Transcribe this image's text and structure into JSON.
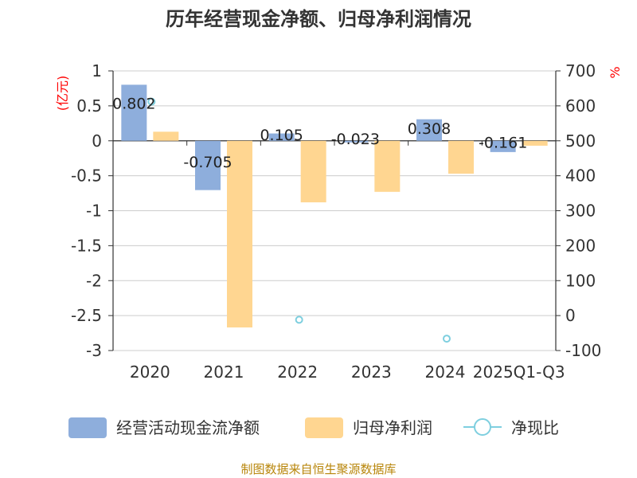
{
  "chart_data": {
    "type": "bar",
    "title": "历年经营现金净额、归母净利润情况",
    "categories": [
      "2020",
      "2021",
      "2022",
      "2023",
      "2024",
      "2025Q1-Q3"
    ],
    "left_axis": {
      "unit": "(亿元)",
      "ylim": [
        -3,
        1
      ],
      "ticks": [
        "1",
        "0.5",
        "0",
        "-0.5",
        "-1",
        "-1.5",
        "-2",
        "-2.5",
        "-3"
      ],
      "tick_values": [
        1,
        0.5,
        0,
        -0.5,
        -1,
        -1.5,
        -2,
        -2.5,
        -3
      ]
    },
    "right_axis": {
      "unit": "%",
      "ylim": [
        -100,
        700
      ],
      "ticks": [
        "700",
        "600",
        "500",
        "400",
        "300",
        "200",
        "100",
        "0",
        "-100"
      ],
      "tick_values": [
        700,
        600,
        500,
        400,
        300,
        200,
        100,
        0,
        -100
      ]
    },
    "series": [
      {
        "name": "经营活动现金流净额",
        "kind": "bar",
        "axis": "left",
        "color": "#8eaedc",
        "values": [
          0.802,
          -0.705,
          0.105,
          -0.023,
          0.308,
          -0.161
        ],
        "labels": [
          "0.802",
          "-0.705",
          "0.105",
          "-0.023",
          "0.308",
          "-0.161"
        ]
      },
      {
        "name": "归母净利润",
        "kind": "bar",
        "axis": "left",
        "color": "#ffd691",
        "values": [
          0.13,
          -2.67,
          -0.88,
          -0.73,
          -0.47,
          -0.07
        ]
      },
      {
        "name": "净现比",
        "kind": "scatter",
        "axis": "right",
        "color": "#7ecfdf",
        "values": [
          612,
          null,
          -12,
          null,
          -66,
          null
        ]
      }
    ]
  },
  "source": "制图数据来自恒生聚源数据库"
}
